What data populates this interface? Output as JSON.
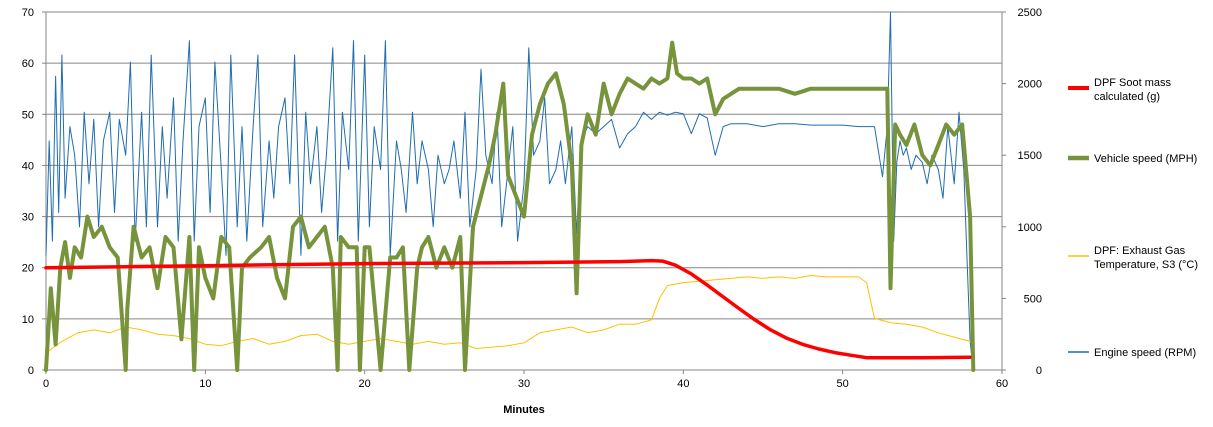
{
  "chart_data": {
    "type": "line",
    "xlabel": "Minutes",
    "xlim": [
      0,
      60
    ],
    "x_ticks": [
      0,
      10,
      20,
      30,
      40,
      50,
      60
    ],
    "ylim_left": [
      0,
      70
    ],
    "y_ticks_left": [
      0,
      10,
      20,
      30,
      40,
      50,
      60,
      70
    ],
    "ylim_right": [
      0,
      2500
    ],
    "y_ticks_right": [
      0,
      500,
      1000,
      1500,
      2000,
      2500
    ],
    "grid": "horizontal",
    "legend_position": "right",
    "series": [
      {
        "name": "DPF Soot mass calculated (g)",
        "axis": "left",
        "color": "#ff0000",
        "x": [
          0,
          5,
          10,
          15,
          20,
          25,
          30,
          33,
          36,
          38,
          38.7,
          39.5,
          40.5,
          41.5,
          42.5,
          43.5,
          44.5,
          45.5,
          46.5,
          47.5,
          48.5,
          49.5,
          50.5,
          51.5,
          55,
          58
        ],
        "y": [
          20,
          20.2,
          20.4,
          20.6,
          20.8,
          20.9,
          21,
          21.1,
          21.2,
          21.4,
          21.3,
          20.5,
          18.8,
          16.6,
          14.3,
          12.0,
          9.8,
          7.8,
          6.2,
          5.0,
          4.1,
          3.4,
          2.9,
          2.4,
          2.4,
          2.5
        ]
      },
      {
        "name": "Vehicle speed (MPH)",
        "axis": "left",
        "color": "#77933c",
        "x": [
          0,
          0.3,
          0.6,
          0.9,
          1.2,
          1.5,
          1.8,
          2.2,
          2.6,
          3.0,
          3.5,
          4.0,
          4.5,
          5.0,
          5.1,
          5.5,
          6.0,
          6.5,
          7.0,
          7.5,
          8.0,
          8.5,
          9.0,
          9.3,
          9.6,
          10.0,
          10.5,
          11.0,
          11.5,
          12.0,
          12.3,
          12.8,
          13.5,
          14.0,
          14.5,
          15.0,
          15.5,
          16.0,
          16.5,
          17.0,
          17.5,
          18.0,
          18.3,
          18.5,
          19.0,
          19.5,
          19.7,
          20.0,
          20.3,
          21.0,
          21.6,
          22.0,
          22.4,
          22.8,
          23.3,
          23.6,
          24.0,
          24.5,
          25.0,
          25.5,
          26.0,
          26.3,
          26.8,
          27.3,
          27.8,
          28.2,
          28.7,
          29.0,
          29.5,
          30.0,
          30.5,
          31.0,
          31.5,
          32.0,
          32.5,
          33.0,
          33.3,
          33.6,
          34.0,
          34.5,
          35.0,
          35.5,
          36.0,
          36.5,
          37.0,
          37.5,
          38.0,
          38.5,
          39.0,
          39.3,
          39.6,
          40.0,
          40.5,
          41.0,
          41.5,
          42.0,
          42.5,
          43.0,
          43.5,
          44.0,
          45.0,
          46.0,
          47.0,
          48.0,
          49.0,
          50.0,
          51.0,
          52.0,
          52.8,
          53.0,
          53.3,
          53.6,
          54.0,
          54.5,
          55.0,
          55.5,
          56.0,
          56.5,
          57.0,
          57.5,
          58.0,
          58.2
        ],
        "y": [
          0,
          16,
          5,
          20,
          25,
          18,
          24,
          22,
          30,
          26,
          28,
          24,
          22,
          0,
          12,
          28,
          22,
          24,
          16,
          26,
          24,
          6,
          26,
          0,
          24,
          18,
          14,
          26,
          24,
          0,
          20,
          22,
          24,
          26,
          18,
          14,
          28,
          30,
          24,
          26,
          28,
          20,
          0,
          26,
          24,
          24,
          0,
          24,
          24,
          0,
          22,
          22,
          24,
          0,
          20,
          24,
          26,
          20,
          24,
          20,
          26,
          0,
          28,
          34,
          40,
          46,
          56,
          38,
          34,
          30,
          46,
          52,
          56,
          58,
          52,
          40,
          15,
          44,
          50,
          46,
          56,
          50,
          54,
          57,
          56,
          55,
          57,
          56,
          57,
          64,
          58,
          57,
          57,
          56,
          57,
          50,
          53,
          54,
          55,
          55,
          55,
          55,
          54,
          55,
          55,
          55,
          55,
          55,
          55,
          16,
          48,
          46,
          44,
          48,
          42,
          40,
          44,
          48,
          46,
          48,
          30,
          0
        ]
      },
      {
        "name": "DPF: Exhaust Gas Temperature, S3 (°C)",
        "axis": "right",
        "color": "#ffc000",
        "x": [
          0,
          1,
          2,
          3,
          4,
          5,
          6,
          7,
          8,
          9,
          10,
          11,
          12,
          13,
          14,
          15,
          16,
          17,
          18,
          19,
          20,
          21,
          22,
          23,
          24,
          25,
          26,
          27,
          28,
          29,
          30,
          31,
          32,
          33,
          34,
          35,
          36,
          37,
          38,
          38.5,
          39,
          39.5,
          40,
          41,
          42,
          43,
          44,
          45,
          46,
          47,
          48,
          49,
          50,
          51,
          51.5,
          52,
          53,
          54,
          55,
          56,
          57,
          58
        ],
        "y": [
          120,
          200,
          260,
          280,
          260,
          300,
          280,
          250,
          240,
          220,
          180,
          170,
          200,
          220,
          180,
          200,
          240,
          250,
          200,
          180,
          200,
          220,
          200,
          180,
          200,
          180,
          190,
          150,
          160,
          170,
          190,
          260,
          280,
          300,
          260,
          280,
          320,
          320,
          350,
          500,
          590,
          600,
          610,
          620,
          630,
          640,
          650,
          640,
          650,
          640,
          660,
          650,
          650,
          650,
          610,
          360,
          330,
          320,
          300,
          260,
          230,
          200
        ]
      },
      {
        "name": "Engine speed (RPM)",
        "axis": "right",
        "color": "#1f6db1",
        "x": [
          0,
          0.2,
          0.4,
          0.6,
          0.8,
          1.0,
          1.2,
          1.5,
          1.8,
          2.1,
          2.4,
          2.7,
          3.0,
          3.3,
          3.6,
          4.0,
          4.3,
          4.6,
          5.0,
          5.3,
          5.6,
          6.0,
          6.3,
          6.6,
          7.0,
          7.3,
          7.6,
          8.0,
          8.3,
          8.6,
          9.0,
          9.3,
          9.6,
          10.0,
          10.3,
          10.6,
          11.0,
          11.3,
          11.6,
          12.0,
          12.3,
          12.6,
          13.0,
          13.3,
          13.6,
          14.0,
          14.3,
          14.6,
          15.0,
          15.3,
          15.6,
          16.0,
          16.3,
          16.6,
          17.0,
          17.3,
          17.6,
          18.0,
          18.3,
          18.6,
          19.0,
          19.3,
          19.6,
          20.0,
          20.3,
          20.6,
          21.0,
          21.3,
          21.6,
          22.0,
          22.3,
          22.6,
          23.0,
          23.3,
          23.6,
          24.0,
          24.3,
          24.6,
          25.0,
          25.3,
          25.6,
          26.0,
          26.3,
          26.6,
          27.0,
          27.3,
          27.6,
          28.0,
          28.3,
          28.6,
          29.0,
          29.3,
          29.6,
          30.0,
          30.3,
          30.6,
          31.0,
          31.3,
          31.6,
          32.0,
          32.3,
          32.6,
          33.0,
          33.3,
          33.6,
          34.0,
          34.5,
          35.0,
          35.5,
          36.0,
          36.5,
          37.0,
          37.5,
          38.0,
          38.5,
          39.0,
          39.5,
          40.0,
          40.5,
          41.0,
          41.5,
          42.0,
          42.5,
          43.0,
          43.5,
          44.0,
          45.0,
          46.0,
          47.0,
          48.0,
          49.0,
          50.0,
          51.0,
          52.0,
          52.5,
          52.8,
          53.0,
          53.2,
          53.4,
          53.6,
          53.8,
          54.0,
          54.3,
          54.6,
          55.0,
          55.3,
          55.6,
          56.0,
          56.3,
          56.6,
          57.0,
          57.3,
          57.6,
          57.8,
          58.0,
          58.2
        ],
        "y": [
          800,
          1600,
          900,
          2050,
          1100,
          2200,
          1200,
          1700,
          1500,
          1000,
          1800,
          1300,
          1750,
          1000,
          1600,
          1800,
          1100,
          1750,
          1500,
          2150,
          900,
          1800,
          1000,
          2200,
          1000,
          1700,
          1200,
          1900,
          900,
          1600,
          2300,
          900,
          1700,
          1900,
          1100,
          2150,
          1400,
          800,
          2200,
          1000,
          1700,
          900,
          1700,
          2200,
          1000,
          1600,
          1200,
          1700,
          1900,
          1300,
          2200,
          800,
          1800,
          1300,
          1700,
          1100,
          1500,
          2250,
          900,
          1800,
          1400,
          2300,
          900,
          2200,
          1000,
          1700,
          1400,
          2300,
          800,
          1600,
          1400,
          1100,
          1800,
          1300,
          1600,
          1400,
          1000,
          1500,
          1300,
          1400,
          1600,
          1200,
          1800,
          1000,
          1400,
          2100,
          1500,
          1300,
          1800,
          1000,
          1400,
          1700,
          900,
          1300,
          2250,
          1500,
          1600,
          1900,
          1300,
          1400,
          1600,
          1300,
          1700,
          950,
          1600,
          1700,
          1650,
          1700,
          1750,
          1550,
          1650,
          1700,
          1800,
          1750,
          1800,
          1780,
          1800,
          1790,
          1650,
          1790,
          1760,
          1500,
          1700,
          1720,
          1720,
          1720,
          1700,
          1720,
          1720,
          1710,
          1710,
          1710,
          1700,
          1700,
          1350,
          1700,
          2500,
          900,
          1450,
          1600,
          1500,
          1550,
          1400,
          1500,
          1450,
          1300,
          1500,
          1400,
          1200,
          1700,
          1300,
          1800,
          1400,
          800,
          200,
          0
        ]
      }
    ]
  }
}
